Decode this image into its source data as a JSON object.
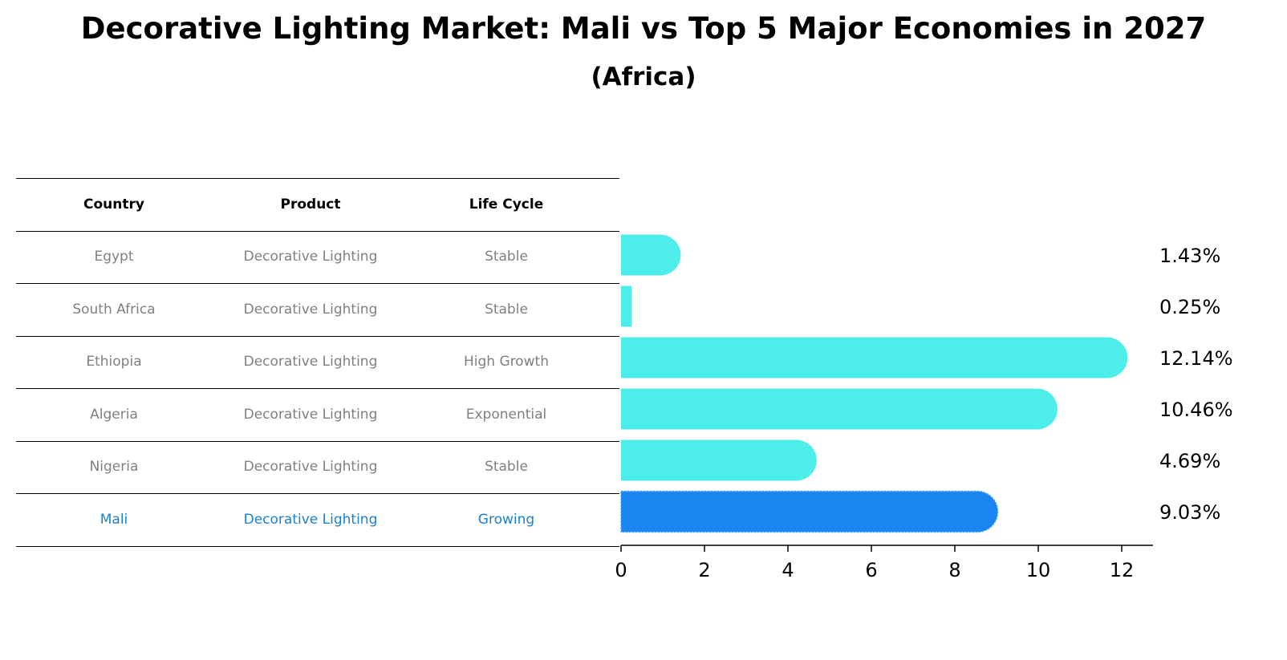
{
  "title": "Decorative Lighting Market: Mali vs Top 5 Major Economies in 2027",
  "subtitle": "(Africa)",
  "table": {
    "headers": [
      "Country",
      "Product",
      "Life Cycle"
    ],
    "rows": [
      [
        "Egypt",
        "Decorative Lighting",
        "Stable"
      ],
      [
        "South Africa",
        "Decorative Lighting",
        "Stable"
      ],
      [
        "Ethiopia",
        "Decorative Lighting",
        "High Growth"
      ],
      [
        "Algeria",
        "Decorative Lighting",
        "Exponential"
      ],
      [
        "Nigeria",
        "Decorative Lighting",
        "Stable"
      ],
      [
        "Mali",
        "Decorative Lighting",
        "Growing"
      ]
    ],
    "highlight_row": 5
  },
  "chart_data": {
    "type": "bar",
    "orientation": "horizontal",
    "categories": [
      "Egypt",
      "South Africa",
      "Ethiopia",
      "Algeria",
      "Nigeria",
      "Mali"
    ],
    "values": [
      1.43,
      0.25,
      12.14,
      10.46,
      4.69,
      9.03
    ],
    "labels": [
      "1.43%",
      "0.25%",
      "12.14%",
      "10.46%",
      "4.69%",
      "9.03%"
    ],
    "xticks": [
      0,
      2,
      4,
      6,
      8,
      10,
      12
    ],
    "xlim": [
      0,
      12.75
    ],
    "grid": false,
    "colors": {
      "default": "#4deeea",
      "highlight": "#1a85f0",
      "text_grey": "#808080",
      "text_highlight": "#1a80d4"
    },
    "highlight_index": 5
  }
}
